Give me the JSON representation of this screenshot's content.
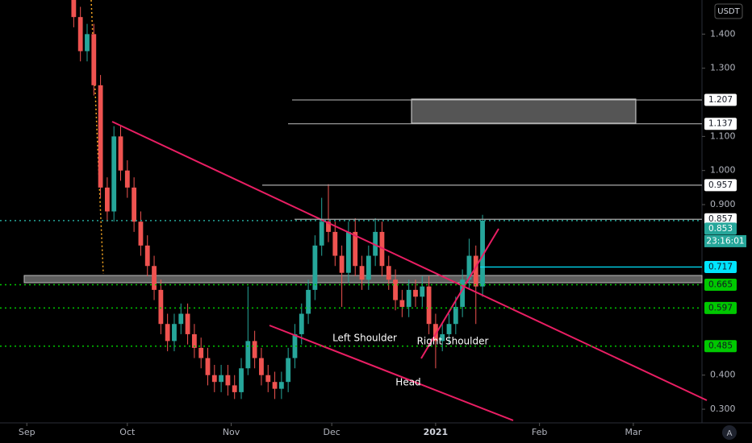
{
  "chart_data": {
    "type": "candlestick",
    "currency": "USDT",
    "x": [
      14,
      16,
      18,
      20,
      22,
      24,
      26,
      28,
      30,
      32,
      34,
      36,
      38,
      40,
      42,
      44,
      46,
      48,
      50,
      52,
      54,
      56,
      58,
      60,
      62,
      64,
      66,
      68,
      70,
      72,
      74,
      76,
      78,
      80,
      82,
      84,
      86,
      88,
      90,
      92,
      94,
      96,
      98,
      100,
      102,
      104,
      106,
      108,
      110,
      112,
      114,
      116,
      118,
      120,
      122,
      124,
      126,
      128,
      130,
      132,
      134,
      136
    ],
    "open": [
      1.52,
      1.45,
      1.35,
      1.4,
      1.25,
      0.95,
      0.88,
      1.1,
      1.0,
      0.95,
      0.85,
      0.78,
      0.72,
      0.65,
      0.55,
      0.5,
      0.55,
      0.58,
      0.52,
      0.48,
      0.45,
      0.4,
      0.38,
      0.4,
      0.37,
      0.35,
      0.42,
      0.5,
      0.45,
      0.4,
      0.38,
      0.36,
      0.38,
      0.45,
      0.52,
      0.58,
      0.65,
      0.78,
      0.85,
      0.82,
      0.75,
      0.7,
      0.82,
      0.72,
      0.68,
      0.75,
      0.82,
      0.72,
      0.68,
      0.62,
      0.6,
      0.65,
      0.63,
      0.66,
      0.55,
      0.5,
      0.52,
      0.55,
      0.6,
      0.68,
      0.75,
      0.66
    ],
    "high": [
      1.55,
      1.48,
      1.43,
      1.43,
      1.28,
      0.98,
      1.13,
      1.13,
      1.03,
      0.98,
      0.88,
      0.81,
      0.75,
      0.68,
      0.58,
      0.58,
      0.61,
      0.61,
      0.55,
      0.51,
      0.48,
      0.43,
      0.43,
      0.43,
      0.4,
      0.45,
      0.66,
      0.53,
      0.48,
      0.43,
      0.41,
      0.41,
      0.48,
      0.55,
      0.61,
      0.68,
      0.81,
      0.92,
      0.96,
      0.85,
      0.78,
      0.85,
      0.86,
      0.75,
      0.78,
      0.86,
      0.85,
      0.75,
      0.71,
      0.65,
      0.68,
      0.68,
      0.69,
      0.69,
      0.58,
      0.55,
      0.58,
      0.63,
      0.71,
      0.8,
      0.78,
      0.87
    ],
    "low": [
      1.42,
      1.32,
      1.32,
      1.22,
      0.92,
      0.85,
      0.85,
      0.97,
      0.92,
      0.82,
      0.75,
      0.69,
      0.62,
      0.52,
      0.47,
      0.47,
      0.52,
      0.49,
      0.45,
      0.42,
      0.37,
      0.35,
      0.35,
      0.34,
      0.33,
      0.33,
      0.4,
      0.42,
      0.37,
      0.35,
      0.33,
      0.33,
      0.35,
      0.42,
      0.49,
      0.55,
      0.62,
      0.75,
      0.79,
      0.72,
      0.6,
      0.67,
      0.69,
      0.65,
      0.65,
      0.72,
      0.69,
      0.65,
      0.59,
      0.57,
      0.57,
      0.6,
      0.6,
      0.52,
      0.42,
      0.47,
      0.49,
      0.52,
      0.57,
      0.65,
      0.55,
      0.63
    ],
    "close": [
      1.45,
      1.35,
      1.4,
      1.25,
      0.95,
      0.88,
      1.1,
      1.0,
      0.95,
      0.85,
      0.78,
      0.72,
      0.65,
      0.55,
      0.5,
      0.55,
      0.58,
      0.52,
      0.48,
      0.45,
      0.4,
      0.38,
      0.4,
      0.37,
      0.35,
      0.42,
      0.5,
      0.45,
      0.4,
      0.38,
      0.36,
      0.38,
      0.45,
      0.52,
      0.58,
      0.65,
      0.78,
      0.85,
      0.82,
      0.75,
      0.7,
      0.82,
      0.72,
      0.68,
      0.75,
      0.82,
      0.72,
      0.68,
      0.62,
      0.6,
      0.65,
      0.63,
      0.66,
      0.55,
      0.5,
      0.52,
      0.55,
      0.6,
      0.68,
      0.75,
      0.66,
      0.853
    ],
    "up_color": "#26a69a",
    "down_color": "#ef5350",
    "xlim": [
      -8,
      201
    ],
    "ylim": [
      0.26,
      1.5
    ],
    "xticks": [
      {
        "value": 0,
        "label": "Sep"
      },
      {
        "value": 30,
        "label": "Oct"
      },
      {
        "value": 61,
        "label": "Nov"
      },
      {
        "value": 91,
        "label": "Dec"
      },
      {
        "value": 122,
        "label": "2021"
      },
      {
        "value": 153,
        "label": "Feb"
      },
      {
        "value": 181,
        "label": "Mar"
      }
    ],
    "yticks": [
      {
        "value": 1.4,
        "label": "1.400"
      },
      {
        "value": 1.3,
        "label": "1.300"
      },
      {
        "value": 1.1,
        "label": "1.100"
      },
      {
        "value": 1.0,
        "label": "1.000"
      },
      {
        "value": 0.9,
        "label": "0.900"
      },
      {
        "value": 0.4,
        "label": "0.400"
      },
      {
        "value": 0.3,
        "label": "0.300"
      }
    ],
    "levels": [
      {
        "value": 1.207,
        "color": "#ffffff",
        "text_color": "#131722",
        "line": "solid"
      },
      {
        "value": 1.137,
        "color": "#ffffff",
        "text_color": "#131722",
        "line": "solid"
      },
      {
        "value": 0.957,
        "color": "#ffffff",
        "text_color": "#131722",
        "line": "solid"
      },
      {
        "value": 0.857,
        "color": "#ffffff",
        "text_color": "#131722",
        "line": "solid"
      },
      {
        "value": 0.853,
        "color": "#26a69a",
        "text_color": "#ffffff",
        "line": "dotted"
      },
      {
        "value": 0.717,
        "color": "#00e5ff",
        "text_color": "#131722",
        "line": "solid"
      },
      {
        "value": 0.665,
        "color": "#00c800",
        "text_color": "#131722",
        "line": "dotted"
      },
      {
        "value": 0.597,
        "color": "#00c800",
        "text_color": "#131722",
        "line": "dotted"
      },
      {
        "value": 0.485,
        "color": "#00c800",
        "text_color": "#131722",
        "line": "dotted"
      }
    ],
    "countdown": "23:16:01",
    "annotations": [
      "Left Shoulder",
      "Right Shoulder",
      "Head"
    ],
    "scale_button": "A"
  }
}
